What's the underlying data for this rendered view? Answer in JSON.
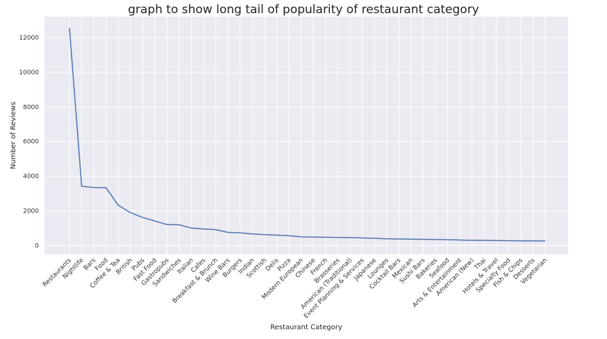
{
  "chart_data": {
    "type": "line",
    "title": "graph to show long tail of popularity of restaurant category",
    "xlabel": "Restaurant Category",
    "ylabel": "Number of Reviews",
    "ylim": [
      -500,
      13200
    ],
    "yticks": [
      0,
      2000,
      4000,
      6000,
      8000,
      10000,
      12000
    ],
    "grid": true,
    "background_color": "#eaeaf2",
    "line_color": "#4c72b0",
    "categories": [
      "Restaurants",
      "Nightlife",
      "Bars",
      "Food",
      "Coffee & Tea",
      "British",
      "Pubs",
      "Fast Food",
      "Gastropubs",
      "Sandwiches",
      "Italian",
      "Cafes",
      "Breakfast & Brunch",
      "Wine Bars",
      "Burgers",
      "Indian",
      "Scottish",
      "Delis",
      "Pizza",
      "Modern European",
      "Chinese",
      "French",
      "Brasseries",
      "American (Traditional)",
      "Event Planning & Services",
      "Japanese",
      "Lounges",
      "Cocktail Bars",
      "Mexican",
      "Sushi Bars",
      "Bakeries",
      "Seafood",
      "Arts & Entertainment",
      "American (New)",
      "Thai",
      "Hotels & Travel",
      "Specialty Food",
      "Fish & Chips",
      "Desserts",
      "Vegetarian"
    ],
    "values": [
      12550,
      3420,
      3350,
      3330,
      2330,
      1900,
      1620,
      1420,
      1210,
      1200,
      1010,
      960,
      920,
      760,
      730,
      670,
      630,
      600,
      570,
      500,
      490,
      480,
      470,
      460,
      440,
      420,
      390,
      380,
      370,
      360,
      350,
      340,
      320,
      300,
      300,
      290,
      280,
      275,
      270,
      265
    ]
  }
}
